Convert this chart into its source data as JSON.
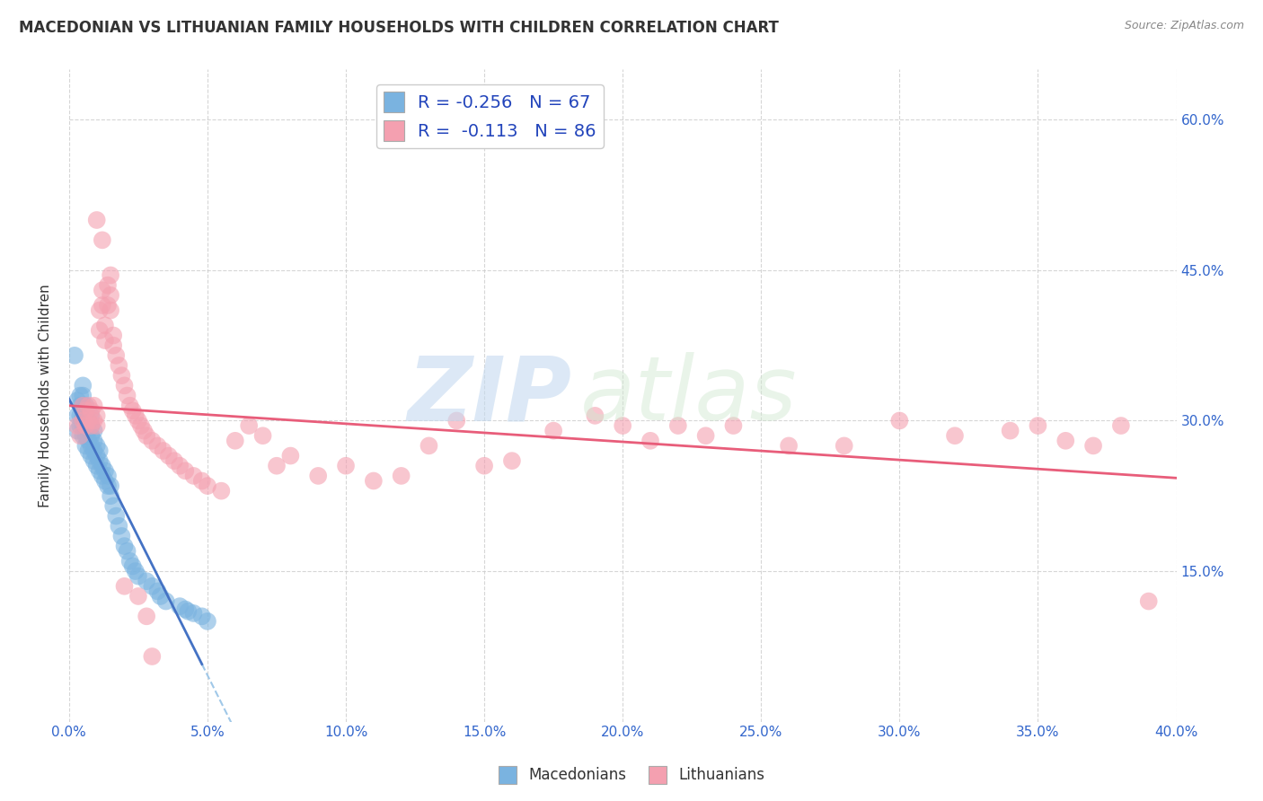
{
  "title": "MACEDONIAN VS LITHUANIAN FAMILY HOUSEHOLDS WITH CHILDREN CORRELATION CHART",
  "source": "Source: ZipAtlas.com",
  "ylabel": "Family Households with Children",
  "ytick_labels": [
    "60.0%",
    "45.0%",
    "30.0%",
    "15.0%"
  ],
  "ytick_values": [
    0.6,
    0.45,
    0.3,
    0.15
  ],
  "xlim": [
    0.0,
    0.4
  ],
  "ylim": [
    0.0,
    0.65
  ],
  "legend_macedonians_R": "-0.256",
  "legend_macedonians_N": "67",
  "legend_lithuanians_R": "-0.113",
  "legend_lithuanians_N": "86",
  "macedonian_color": "#7ab3e0",
  "lithuanian_color": "#f4a0b0",
  "macedonian_line_color": "#4472c4",
  "lithuanian_line_color": "#e85d7a",
  "macedonian_dashed_color": "#a0c8e8",
  "background_color": "#ffffff",
  "macedonian_x": [
    0.002,
    0.003,
    0.003,
    0.003,
    0.004,
    0.004,
    0.004,
    0.004,
    0.005,
    0.005,
    0.005,
    0.005,
    0.005,
    0.005,
    0.006,
    0.006,
    0.006,
    0.006,
    0.006,
    0.007,
    0.007,
    0.007,
    0.007,
    0.008,
    0.008,
    0.008,
    0.008,
    0.008,
    0.009,
    0.009,
    0.009,
    0.009,
    0.01,
    0.01,
    0.01,
    0.011,
    0.011,
    0.011,
    0.012,
    0.012,
    0.013,
    0.013,
    0.014,
    0.014,
    0.015,
    0.015,
    0.016,
    0.017,
    0.018,
    0.019,
    0.02,
    0.021,
    0.022,
    0.023,
    0.024,
    0.025,
    0.028,
    0.03,
    0.032,
    0.033,
    0.035,
    0.04,
    0.042,
    0.043,
    0.045,
    0.048,
    0.05
  ],
  "macedonian_y": [
    0.365,
    0.29,
    0.305,
    0.32,
    0.295,
    0.305,
    0.315,
    0.325,
    0.285,
    0.295,
    0.305,
    0.315,
    0.325,
    0.335,
    0.275,
    0.285,
    0.295,
    0.305,
    0.315,
    0.27,
    0.28,
    0.29,
    0.3,
    0.265,
    0.275,
    0.285,
    0.295,
    0.305,
    0.26,
    0.27,
    0.28,
    0.29,
    0.255,
    0.265,
    0.275,
    0.25,
    0.26,
    0.27,
    0.245,
    0.255,
    0.24,
    0.25,
    0.235,
    0.245,
    0.225,
    0.235,
    0.215,
    0.205,
    0.195,
    0.185,
    0.175,
    0.17,
    0.16,
    0.155,
    0.15,
    0.145,
    0.14,
    0.135,
    0.13,
    0.125,
    0.12,
    0.115,
    0.112,
    0.11,
    0.108,
    0.105,
    0.1
  ],
  "lithuanian_x": [
    0.003,
    0.004,
    0.005,
    0.005,
    0.006,
    0.006,
    0.007,
    0.007,
    0.008,
    0.008,
    0.009,
    0.009,
    0.01,
    0.01,
    0.011,
    0.011,
    0.012,
    0.012,
    0.013,
    0.013,
    0.014,
    0.014,
    0.015,
    0.015,
    0.016,
    0.016,
    0.017,
    0.018,
    0.019,
    0.02,
    0.021,
    0.022,
    0.023,
    0.024,
    0.025,
    0.026,
    0.027,
    0.028,
    0.03,
    0.032,
    0.034,
    0.036,
    0.038,
    0.04,
    0.042,
    0.045,
    0.048,
    0.05,
    0.055,
    0.06,
    0.065,
    0.07,
    0.075,
    0.08,
    0.09,
    0.1,
    0.11,
    0.12,
    0.13,
    0.14,
    0.15,
    0.16,
    0.175,
    0.19,
    0.2,
    0.21,
    0.22,
    0.23,
    0.24,
    0.26,
    0.28,
    0.3,
    0.32,
    0.34,
    0.35,
    0.36,
    0.37,
    0.38,
    0.39,
    0.01,
    0.012,
    0.015,
    0.02,
    0.025,
    0.028,
    0.03
  ],
  "lithuanian_y": [
    0.295,
    0.285,
    0.3,
    0.315,
    0.295,
    0.31,
    0.3,
    0.315,
    0.295,
    0.31,
    0.3,
    0.315,
    0.295,
    0.305,
    0.39,
    0.41,
    0.415,
    0.43,
    0.38,
    0.395,
    0.415,
    0.435,
    0.425,
    0.445,
    0.375,
    0.385,
    0.365,
    0.355,
    0.345,
    0.335,
    0.325,
    0.315,
    0.31,
    0.305,
    0.3,
    0.295,
    0.29,
    0.285,
    0.28,
    0.275,
    0.27,
    0.265,
    0.26,
    0.255,
    0.25,
    0.245,
    0.24,
    0.235,
    0.23,
    0.28,
    0.295,
    0.285,
    0.255,
    0.265,
    0.245,
    0.255,
    0.24,
    0.245,
    0.275,
    0.3,
    0.255,
    0.26,
    0.29,
    0.305,
    0.295,
    0.28,
    0.295,
    0.285,
    0.295,
    0.275,
    0.275,
    0.3,
    0.285,
    0.29,
    0.295,
    0.28,
    0.275,
    0.295,
    0.12,
    0.5,
    0.48,
    0.41,
    0.135,
    0.125,
    0.105,
    0.065
  ]
}
